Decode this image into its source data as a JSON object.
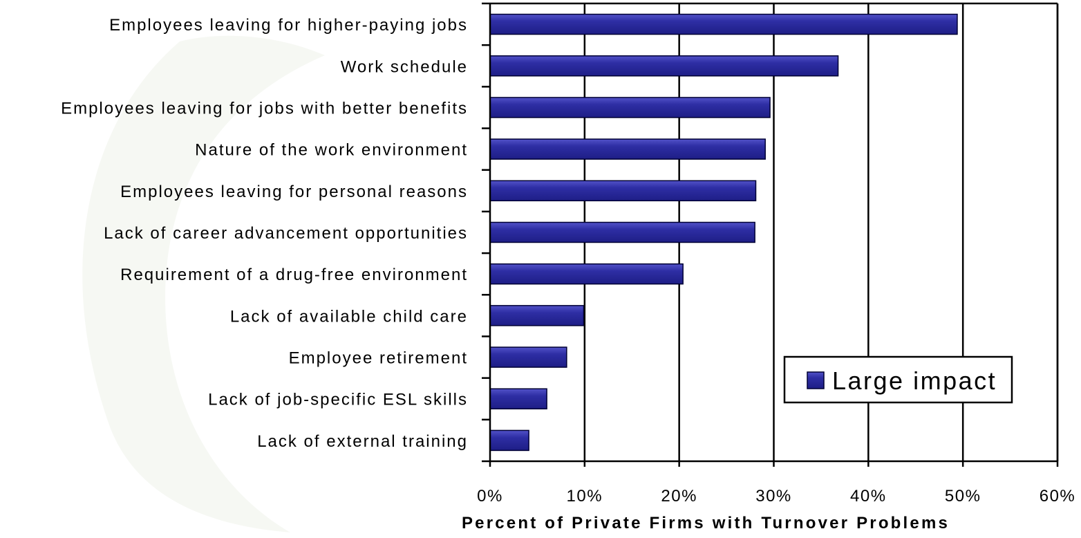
{
  "chart_data": {
    "type": "bar",
    "orientation": "horizontal",
    "categories": [
      "Employees leaving for higher-paying jobs",
      "Work schedule",
      "Employees leaving for jobs with better benefits",
      "Nature of the work environment",
      "Employees leaving for personal reasons",
      "Lack of career advancement opportunities",
      "Requirement of a drug-free environment",
      "Lack of available child care",
      "Employee retirement",
      "Lack of job-specific ESL skills",
      "Lack of external training"
    ],
    "series": [
      {
        "name": "Large impact",
        "values": [
          49.4,
          36.8,
          29.6,
          29.1,
          28.1,
          28.0,
          20.4,
          9.9,
          8.1,
          6.0,
          4.1
        ]
      }
    ],
    "title": "",
    "xlabel": "Percent of Private Firms with Turnover Problems",
    "ylabel": "",
    "xlim": [
      0,
      60
    ],
    "xticks": [
      "0%",
      "10%",
      "20%",
      "30%",
      "40%",
      "50%",
      "60%"
    ],
    "grid": "vertical major gridlines",
    "legend_position": "bottom-right",
    "colors": {
      "bar_fill": "#2a2a9c",
      "bar_highlight": "#4545c4",
      "bar_stroke": "#000033",
      "gridline": "#000000",
      "background": "#ffffff",
      "watermark": "#eef2ea"
    }
  }
}
